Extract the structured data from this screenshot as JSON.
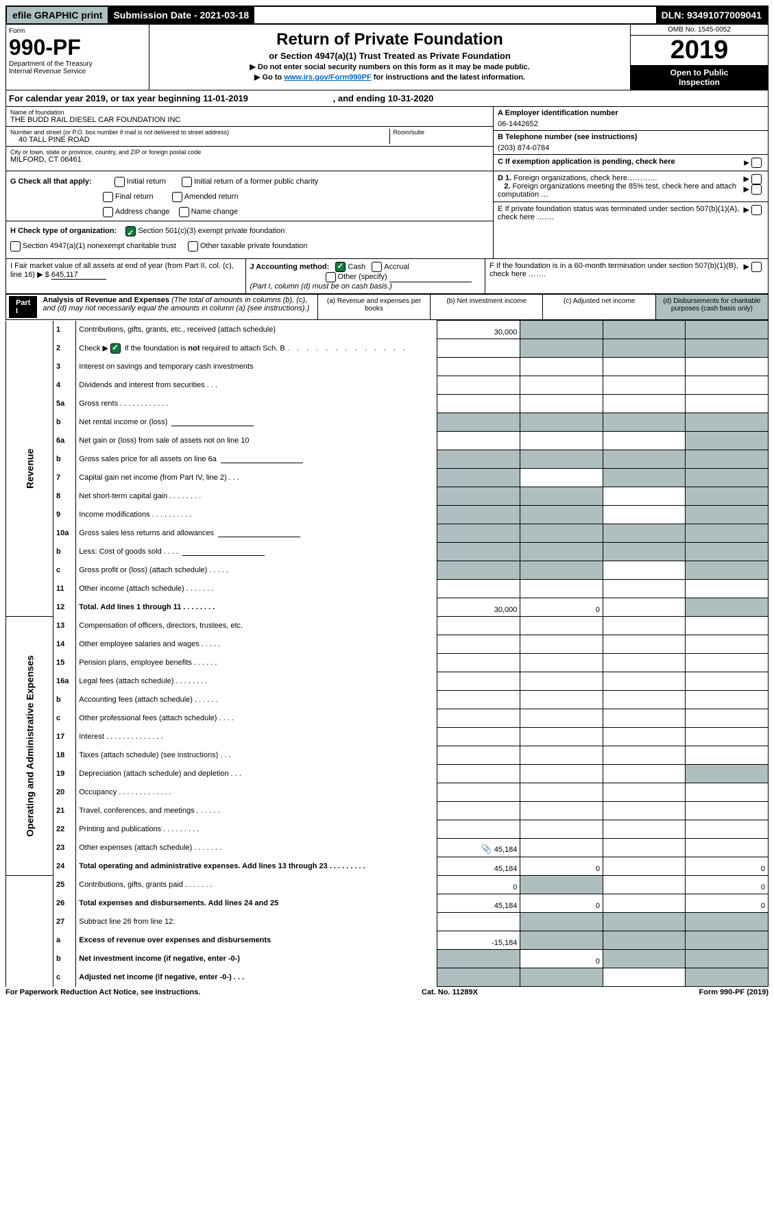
{
  "top": {
    "efile": "efile GRAPHIC print",
    "submission": "Submission Date - 2021-03-18",
    "dln": "DLN: 93491077009041"
  },
  "header": {
    "form": "Form",
    "formnum": "990-PF",
    "dept": "Department of the Treasury",
    "irs": "Internal Revenue Service",
    "title": "Return of Private Foundation",
    "sub": "or Section 4947(a)(1) Trust Treated as Private Foundation",
    "warn": "▶ Do not enter social security numbers on this form as it may be made public.",
    "goto_pre": "▶ Go to ",
    "goto_link": "www.irs.gov/Form990PF",
    "goto_post": " for instructions and the latest information.",
    "omb": "OMB No. 1545-0052",
    "year": "2019",
    "open1": "Open to Public",
    "open2": "Inspection"
  },
  "cal": {
    "pre": "For calendar year 2019, or tax year beginning ",
    "begin": "11-01-2019",
    "mid": " , and ending ",
    "end": "10-31-2020"
  },
  "id": {
    "name_label": "Name of foundation",
    "name": "THE BUDD RAIL DIESEL CAR FOUNDATION INC",
    "addr_label": "Number and street (or P.O. box number if mail is not delivered to street address)",
    "room": "Room/suite",
    "addr": "40 TALL PINE ROAD",
    "city_label": "City or town, state or province, country, and ZIP or foreign postal code",
    "city": "MILFORD, CT  06461",
    "a_label": "A Employer identification number",
    "ein": "06-1442652",
    "b_label": "B Telephone number (see instructions)",
    "phone": "(203) 874-0784",
    "c_label": "C If exemption application is pending, check here"
  },
  "g": {
    "label": "G Check all that apply:",
    "opts": [
      "Initial return",
      "Initial return of a former public charity",
      "Final return",
      "Amended return",
      "Address change",
      "Name change"
    ]
  },
  "h": {
    "label": "H Check type of organization:",
    "o1": "Section 501(c)(3) exempt private foundation",
    "o2": "Section 4947(a)(1) nonexempt charitable trust",
    "o3": "Other taxable private foundation"
  },
  "i": {
    "label": "I Fair market value of all assets at end of year (from Part II, col. (c), line 16) ▶ $ ",
    "val": "645,117"
  },
  "j": {
    "label": "J Accounting method:",
    "o1": "Cash",
    "o2": "Accrual",
    "o3": "Other (specify)",
    "note": "(Part I, column (d) must be on cash basis.)"
  },
  "d": {
    "label": "D 1. Foreign organizations, check here…………",
    "label2": "2. Foreign organizations meeting the 85% test, check here and attach computation …"
  },
  "e": {
    "label": "E  If private foundation status was terminated under section 507(b)(1)(A), check here ……."
  },
  "f": {
    "label": "F  If the foundation is in a 60-month termination under section 507(b)(1)(B), check here ……."
  },
  "part1": {
    "label": "Part I",
    "title": "Analysis of Revenue and Expenses ",
    "note": "(The total of amounts in columns (b), (c), and (d) may not necessarily equal the amounts in column (a) (see instructions).)",
    "cols": {
      "a": "(a)   Revenue and expenses per books",
      "b": "(b)  Net investment income",
      "c": "(c)  Adjusted net income",
      "d": "(d)  Disbursements for charitable purposes (cash basis only)"
    }
  },
  "sides": {
    "rev": "Revenue",
    "exp": "Operating and Administrative Expenses"
  },
  "rows": [
    {
      "n": "1",
      "d": "Contributions, gifts, grants, etc., received (attach schedule)",
      "a": "30,000",
      "sb": true,
      "sc": true,
      "sd": true
    },
    {
      "n": "2",
      "d": "Check ▶ ✔ if the foundation is not required to attach Sch. B",
      "checkline": true,
      "sb": true,
      "sc": true,
      "sd": true
    },
    {
      "n": "3",
      "d": "Interest on savings and temporary cash investments"
    },
    {
      "n": "4",
      "d": "Dividends and interest from securities   .   .   ."
    },
    {
      "n": "5a",
      "d": "Gross rents   .   .   .   .   .   .   .   .   .   .   .   ."
    },
    {
      "n": "b",
      "d": "Net rental income or (loss)",
      "inline": true,
      "sa": true,
      "sb": true,
      "sc": true,
      "sd": true
    },
    {
      "n": "6a",
      "d": "Net gain or (loss) from sale of assets not on line 10",
      "sd": true
    },
    {
      "n": "b",
      "d": "Gross sales price for all assets on line 6a",
      "inline": true,
      "sa": true,
      "sb": true,
      "sc": true,
      "sd": true
    },
    {
      "n": "7",
      "d": "Capital gain net income (from Part IV, line 2)   .   .   .",
      "sa": true,
      "sc": true,
      "sd": true
    },
    {
      "n": "8",
      "d": "Net short-term capital gain   .   .   .   .   .   .   .   .",
      "sa": true,
      "sb": true,
      "sd": true
    },
    {
      "n": "9",
      "d": "Income modifications   .   .   .   .   .   .   .   .   .   .",
      "sa": true,
      "sb": true,
      "sd": true
    },
    {
      "n": "10a",
      "d": "Gross sales less returns and allowances",
      "inline": true,
      "sa": true,
      "sb": true,
      "sc": true,
      "sd": true
    },
    {
      "n": "b",
      "d": "Less: Cost of goods sold   .   .   .   .",
      "inline": true,
      "sa": true,
      "sb": true,
      "sc": true,
      "sd": true
    },
    {
      "n": "c",
      "d": "Gross profit or (loss) (attach schedule)   .   .   .   .   .",
      "sa": true,
      "sb": true,
      "sd": true
    },
    {
      "n": "11",
      "d": "Other income (attach schedule)   .   .   .   .   .   .   ."
    },
    {
      "n": "12",
      "d": "Total. Add lines 1 through 11   .   .   .   .   .   .   .   .",
      "bold": true,
      "a": "30,000",
      "b": "0",
      "sd": true
    },
    {
      "n": "13",
      "d": "Compensation of officers, directors, trustees, etc.",
      "section": "exp"
    },
    {
      "n": "14",
      "d": "Other employee salaries and wages   .   .   .   .   ."
    },
    {
      "n": "15",
      "d": "Pension plans, employee benefits   .   .   .   .   .   ."
    },
    {
      "n": "16a",
      "d": "Legal fees (attach schedule)   .   .   .   .   .   .   .   ."
    },
    {
      "n": "b",
      "d": "Accounting fees (attach schedule)   .   .   .   .   .   ."
    },
    {
      "n": "c",
      "d": "Other professional fees (attach schedule)   .   .   .   ."
    },
    {
      "n": "17",
      "d": "Interest   .   .   .   .   .   .   .   .   .   .   .   .   .   ."
    },
    {
      "n": "18",
      "d": "Taxes (attach schedule) (see instructions)   .   .   ."
    },
    {
      "n": "19",
      "d": "Depreciation (attach schedule) and depletion   .   .   .",
      "sd": true
    },
    {
      "n": "20",
      "d": "Occupancy   .   .   .   .   .   .   .   .   .   .   .   .   ."
    },
    {
      "n": "21",
      "d": "Travel, conferences, and meetings   .   .   .   .   .   ."
    },
    {
      "n": "22",
      "d": "Printing and publications   .   .   .   .   .   .   .   .   ."
    },
    {
      "n": "23",
      "d": "Other expenses (attach schedule)   .   .   .   .   .   .   .",
      "a": "45,184",
      "aicon": true
    },
    {
      "n": "24",
      "d": "Total operating and administrative expenses. Add lines 13 through 23   .   .   .   .   .   .   .   .   .",
      "bold": true,
      "a": "45,184",
      "b": "0",
      "dv": "0"
    },
    {
      "n": "25",
      "d": "Contributions, gifts, grants paid   .   .   .   .   .   .   .",
      "a": "0",
      "sb": true,
      "dv": "0"
    },
    {
      "n": "26",
      "d": "Total expenses and disbursements. Add lines 24 and 25",
      "bold": true,
      "a": "45,184",
      "b": "0",
      "dv": "0"
    },
    {
      "n": "27",
      "d": "Subtract line 26 from line 12:",
      "noval": true,
      "sa": false,
      "sb": true,
      "sc": true,
      "sd": true
    },
    {
      "n": "a",
      "d": "Excess of revenue over expenses and disbursements",
      "bold": true,
      "a": "-15,184",
      "sb": true,
      "sc": true,
      "sd": true
    },
    {
      "n": "b",
      "d": "Net investment income (if negative, enter -0-)",
      "bold": true,
      "sa": true,
      "b": "0",
      "sc": true,
      "sd": true
    },
    {
      "n": "c",
      "d": "Adjusted net income (if negative, enter -0-)   .   .   .",
      "bold": true,
      "sa": true,
      "sb": true,
      "sd": true
    }
  ],
  "footer": {
    "left": "For Paperwork Reduction Act Notice, see instructions.",
    "mid": "Cat. No. 11289X",
    "right": "Form 990-PF (2019)"
  }
}
